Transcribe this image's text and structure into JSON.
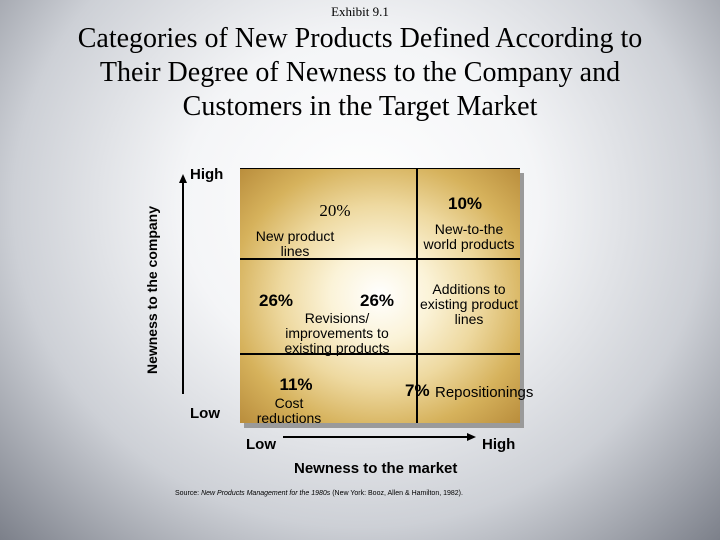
{
  "exhibit": "Exhibit 9.1",
  "title_lines": [
    "Categories of New Products Defined According to",
    "Their Degree of Newness to the Company and",
    "Customers in the Target Market"
  ],
  "y_axis": {
    "label": "Newness to the company",
    "high": "High",
    "low": "Low"
  },
  "x_axis": {
    "label": "Newness to the market",
    "low": "Low",
    "high": "High"
  },
  "categories": {
    "new_product_lines": {
      "percent": "20%",
      "label_lines": [
        "New product",
        "lines"
      ]
    },
    "new_to_the_world": {
      "percent": "10%",
      "label_lines": [
        "New-to-the",
        "world products"
      ]
    },
    "revisions": {
      "percent": "26%",
      "label_lines": [
        "Revisions/",
        "improvements to",
        "existing products"
      ]
    },
    "additions": {
      "percent": "26%",
      "label_lines": [
        "Additions to",
        "existing product",
        "lines"
      ]
    },
    "cost_reductions": {
      "percent": "11%",
      "label_lines": [
        "Cost",
        "reductions"
      ]
    },
    "repositionings": {
      "percent": "7%",
      "label": "Repositionings"
    }
  },
  "source": {
    "prefix": "Source: ",
    "work": "New Products Management for the 1980s",
    "rest": " (New York: Booz, Allen & Hamilton, 1982)."
  }
}
